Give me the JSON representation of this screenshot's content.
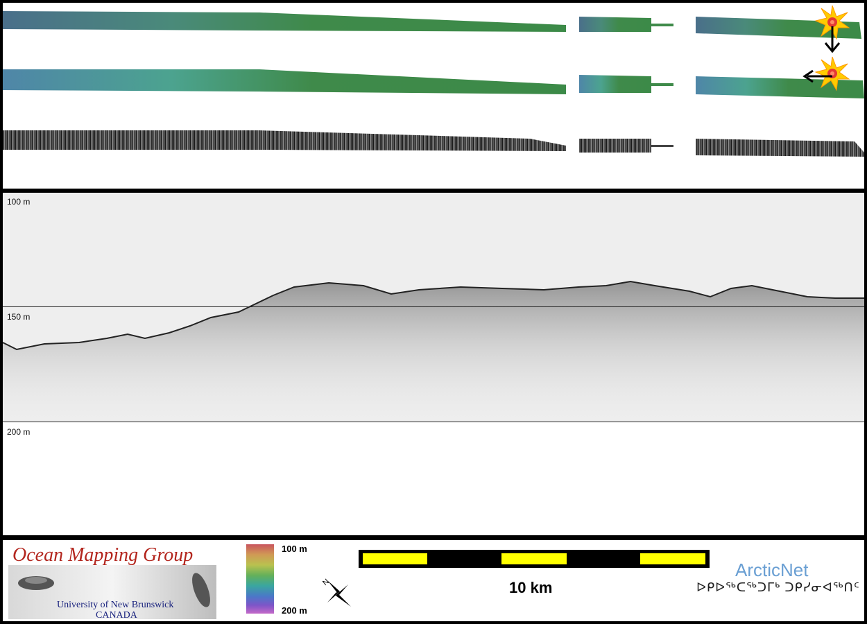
{
  "depth_labels": {
    "top": "100 m",
    "middle": "150 m",
    "bottom": "200 m"
  },
  "legend": {
    "colorbar_top": "100 m",
    "colorbar_bottom": "200 m",
    "scale_label": "10 km",
    "compass_letter": "N"
  },
  "logo_omg": {
    "title": "Ocean Mapping Group",
    "line1": "University of New Brunswick",
    "line2": "CANADA"
  },
  "logo_arcticnet": {
    "name": "ArcticNet",
    "inuktitut": "ᐅᑭᐅᖅᑕᖅᑐᒥᒃ ᑐᑭᓯᓂᐊᖅᑎᑦ"
  },
  "colors": {
    "frame": "#000000",
    "swath_blue": "#4f86a8",
    "swath_green": "#3f8a4a",
    "scale_yellow": "#ffff00",
    "sediment_bg": "#eeeeee",
    "sun": "#ffcc00"
  },
  "icons": [
    "sun-icon",
    "arrow-down-icon",
    "arrow-left-icon",
    "north-arrow-icon"
  ]
}
